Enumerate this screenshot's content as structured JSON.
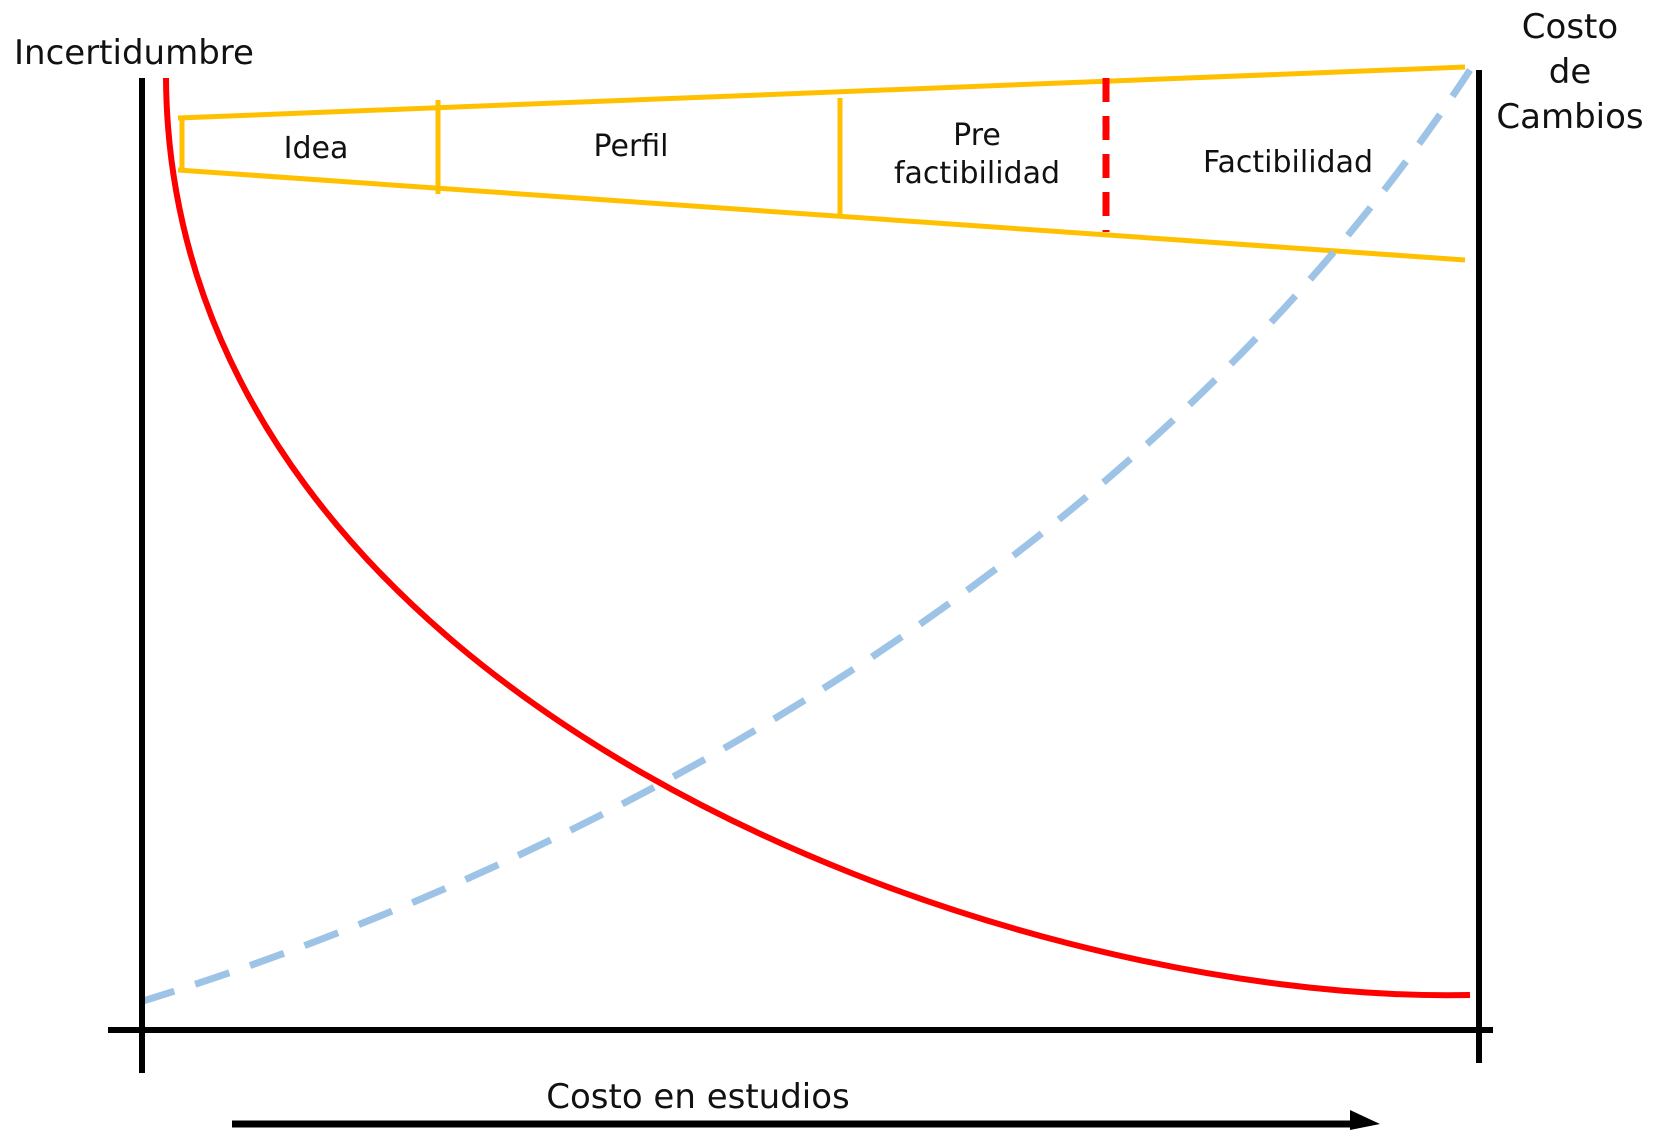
{
  "diagram": {
    "left_axis_label": "Incertidumbre",
    "right_axis_label": [
      "Costo",
      "de",
      "Cambios"
    ],
    "bottom_label": "Costo en estudios",
    "stages": [
      {
        "lines": [
          "Idea"
        ]
      },
      {
        "lines": [
          "Perfil"
        ]
      },
      {
        "lines": [
          "Pre",
          "factibilidad"
        ]
      },
      {
        "lines": [
          "Factibilidad"
        ]
      }
    ],
    "curves": {
      "uncertainty": {
        "color": "#ff0000",
        "style": "solid",
        "trend": "decreasing"
      },
      "cost_of_change": {
        "color": "#9dc3e6",
        "style": "dashed",
        "trend": "increasing"
      }
    },
    "colors": {
      "axes": "#000000",
      "funnel": "#ffc000",
      "decision_marker": "#ff0000"
    }
  }
}
